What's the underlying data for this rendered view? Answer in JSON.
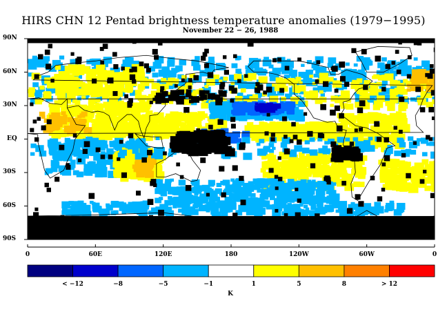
{
  "title": "HIRS CHN 12 Pentad brightness temperature anomalies (1979−1995)",
  "subtitle": "November 22 − 26, 1988",
  "lat_ticks": [
    {
      "label": "90N",
      "lat": 90
    },
    {
      "label": "60N",
      "lat": 60
    },
    {
      "label": "30N",
      "lat": 30
    },
    {
      "label": "EQ",
      "lat": 0
    },
    {
      "label": "30S",
      "lat": -30
    },
    {
      "label": "60S",
      "lat": -60
    },
    {
      "label": "90S",
      "lat": -90
    }
  ],
  "lon_ticks": [
    {
      "label": "0",
      "lon": 0
    },
    {
      "label": "60E",
      "lon": 60
    },
    {
      "label": "120E",
      "lon": 120
    },
    {
      "label": "180",
      "lon": 180
    },
    {
      "label": "120W",
      "lon": 240
    },
    {
      "label": "60W",
      "lon": 300
    },
    {
      "label": "0",
      "lon": 360
    }
  ],
  "colorbar": {
    "colors": [
      "#000080",
      "#0000cc",
      "#0066ff",
      "#00b4ff",
      "#ffffff",
      "#ffff00",
      "#ffc000",
      "#ff8000",
      "#ff0000"
    ],
    "labels": [
      "< −12",
      "−8",
      "−5",
      "−1",
      "1",
      "5",
      "8",
      "> 12"
    ],
    "unit": "K"
  },
  "field_colors": {
    "white": "#ffffff",
    "light_blue": "#00b4ff",
    "blue": "#0066ff",
    "dark_blue": "#0000cc",
    "yellow": "#ffff00",
    "orange": "#ffc000",
    "missing": "#000000"
  }
}
